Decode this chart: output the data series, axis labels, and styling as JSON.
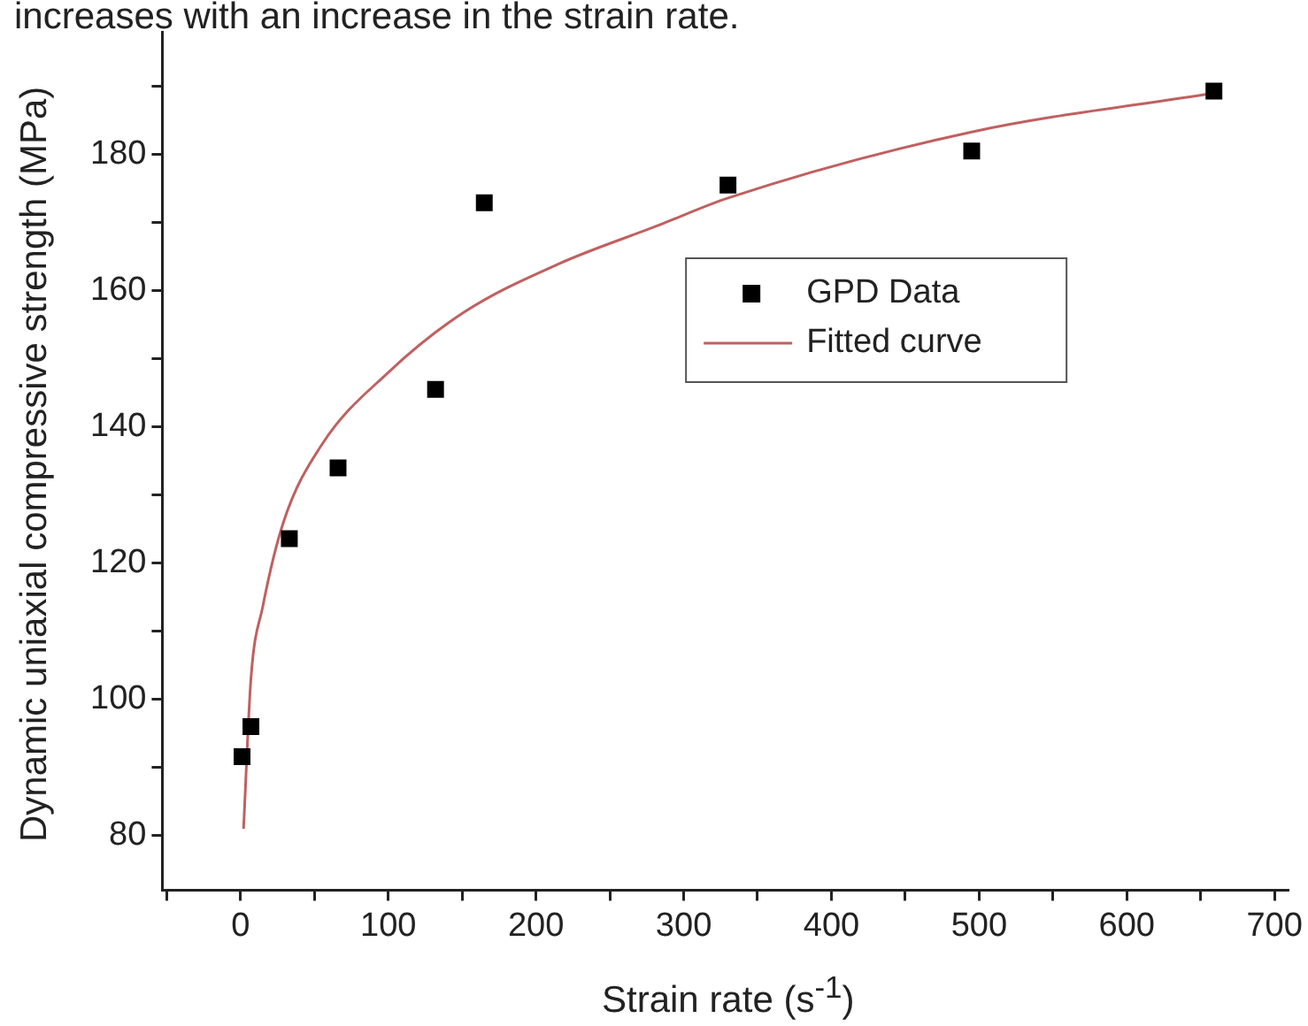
{
  "chart_data": {
    "type": "scatter",
    "xlabel": "Strain rate (s$^{-1}$)",
    "ylabel": "Dynamic uniaxial compressive strength (MPa)",
    "annotations": [
      "increases with an increase in the strain rate."
    ],
    "xlim": [
      -53,
      709
    ],
    "ylim": [
      72,
      198
    ],
    "xticks": [
      {
        "value": -50,
        "label": null
      },
      0,
      {
        "value": 50,
        "label": null
      },
      100,
      {
        "value": 150,
        "label": null
      },
      200,
      {
        "value": 250,
        "label": null
      },
      300,
      {
        "value": 350,
        "label": null
      },
      400,
      {
        "value": 450,
        "label": null
      },
      500,
      {
        "value": 550,
        "label": null
      },
      600,
      {
        "value": 650,
        "label": null
      },
      700
    ],
    "yticks": [
      80,
      {
        "value": 90,
        "label": null
      },
      100,
      {
        "value": 110,
        "label": null
      },
      120,
      {
        "value": 130,
        "label": null
      },
      140,
      {
        "value": 150,
        "label": null
      },
      160,
      {
        "value": 170,
        "label": null
      },
      180,
      {
        "value": 190,
        "label": null
      }
    ],
    "grid": false,
    "legend": "top right",
    "marker": "square",
    "series": [
      {
        "name": "GPD Data",
        "type": "scatter",
        "color": "#000000",
        "x": [
          1,
          7,
          33,
          66,
          132,
          165,
          330,
          495,
          659
        ],
        "values": [
          91.6,
          96,
          123.6,
          134,
          145.5,
          172.9,
          175.5,
          180.5,
          189.3
        ]
      },
      {
        "name": "Fitted curve",
        "type": "line",
        "color": "#c06060",
        "marker": "none",
        "x": [
          2,
          7,
          15,
          29,
          55,
          100,
          151,
          215,
          283,
          330,
          495,
          659
        ],
        "values": [
          81,
          103,
          113.6,
          126,
          137.4,
          148,
          156.8,
          163.9,
          169.6,
          173.6,
          183.3,
          189
        ]
      }
    ]
  }
}
